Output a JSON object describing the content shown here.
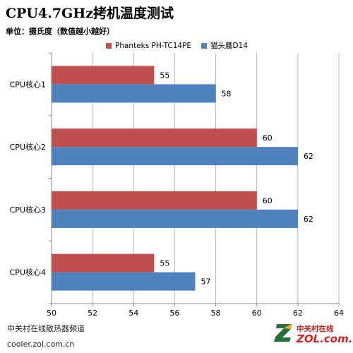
{
  "colors": {
    "series_a": "#C0504D",
    "series_b": "#4F81BD",
    "grid": "#b8b8b8",
    "axis": "#888888"
  },
  "footer": {
    "line1": "中关村在线散热器频道",
    "line2": "cooler.zol.com.cn"
  },
  "logo": {
    "top": "中关村在线",
    "bottom": "ZOL.com.cn"
  },
  "chart_data": {
    "type": "bar",
    "orientation": "horizontal",
    "title": "CPU4.7GHz拷机温度测试",
    "subtitle": "单位：摄氏度（数值越小越好）",
    "categories": [
      "CPU核心1",
      "CPU核心2",
      "CPU核心3",
      "CPU核心4"
    ],
    "series": [
      {
        "name": "Phanteks PH-TC14PE",
        "values": [
          55,
          60,
          60,
          55
        ]
      },
      {
        "name": "猫头鹰D14",
        "values": [
          58,
          62,
          62,
          57
        ]
      }
    ],
    "xlim": [
      50,
      64
    ],
    "xticks": [
      "50",
      "52",
      "54",
      "56",
      "58",
      "60",
      "62",
      "64"
    ],
    "grid": true,
    "legend": "top"
  }
}
